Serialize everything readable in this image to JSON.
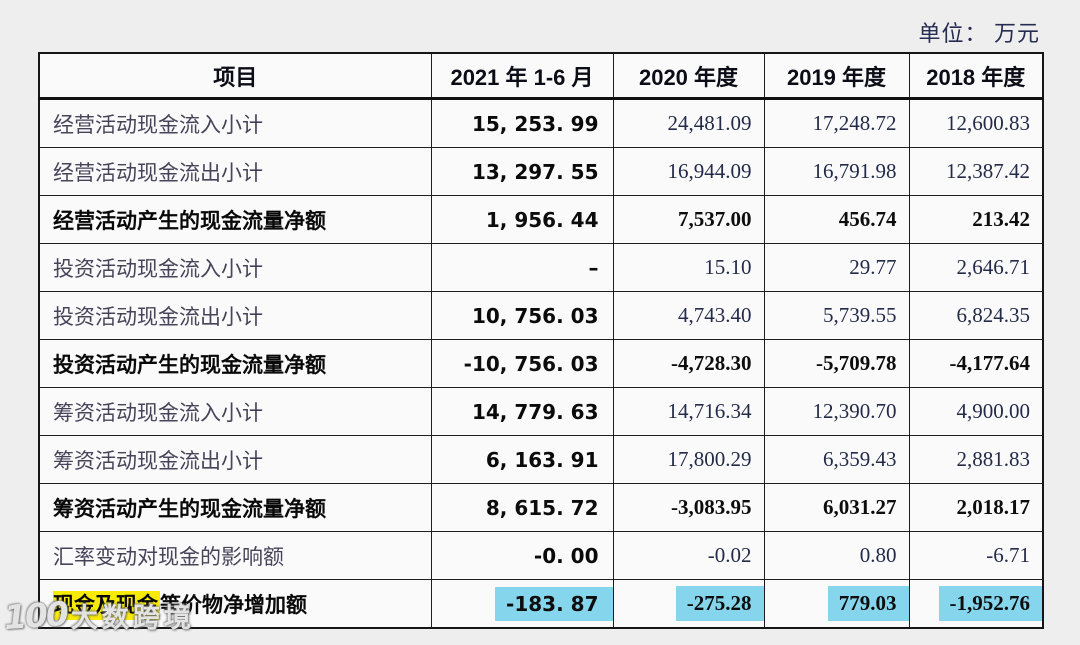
{
  "unit_label": "单位： 万元",
  "watermark": {
    "logo": "100",
    "text": "大数跨境"
  },
  "colors": {
    "highlight_yellow": "#f8ea07",
    "highlight_cyan": "#85d5ec",
    "border": "#1d1d1d",
    "number_text": "#232b49"
  },
  "table": {
    "header": {
      "item": "项目",
      "cols": [
        "2021 年 1-6 月",
        "2020 年度",
        "2019 年度",
        "2018 年度"
      ]
    },
    "rows": [
      {
        "label": "经营活动现金流入小计",
        "values": [
          "15, 253. 99",
          "24,481.09",
          "17,248.72",
          "12,600.83"
        ]
      },
      {
        "label": "经营活动现金流出小计",
        "values": [
          "13, 297. 55",
          "16,944.09",
          "16,791.98",
          "12,387.42"
        ]
      },
      {
        "label": "经营活动产生的现金流量净额",
        "values": [
          "1, 956. 44",
          "7,537.00",
          "456.74",
          "213.42"
        ]
      },
      {
        "label": "投资活动现金流入小计",
        "values": [
          "–",
          "15.10",
          "29.77",
          "2,646.71"
        ]
      },
      {
        "label": "投资活动现金流出小计",
        "values": [
          "10, 756. 03",
          "4,743.40",
          "5,739.55",
          "6,824.35"
        ]
      },
      {
        "label": "投资活动产生的现金流量净额",
        "values": [
          "-10, 756. 03",
          "-4,728.30",
          "-5,709.78",
          "-4,177.64"
        ]
      },
      {
        "label": "筹资活动现金流入小计",
        "values": [
          "14, 779. 63",
          "14,716.34",
          "12,390.70",
          "4,900.00"
        ]
      },
      {
        "label": "筹资活动现金流出小计",
        "values": [
          "6, 163. 91",
          "17,800.29",
          "6,359.43",
          "2,881.83"
        ]
      },
      {
        "label": "筹资活动产生的现金流量净额",
        "values": [
          "8, 615. 72",
          "-3,083.95",
          "6,031.27",
          "2,018.17"
        ]
      },
      {
        "label": "汇率变动对现金的影响额",
        "values": [
          "-0. 00",
          "-0.02",
          "0.80",
          "-6.71"
        ]
      }
    ],
    "last_row": {
      "label_highlighted": "现金及现金",
      "label_rest": "等价物净增加额",
      "values": [
        "-183. 87",
        "-275.28",
        "779.03",
        "-1,952.76"
      ]
    }
  }
}
